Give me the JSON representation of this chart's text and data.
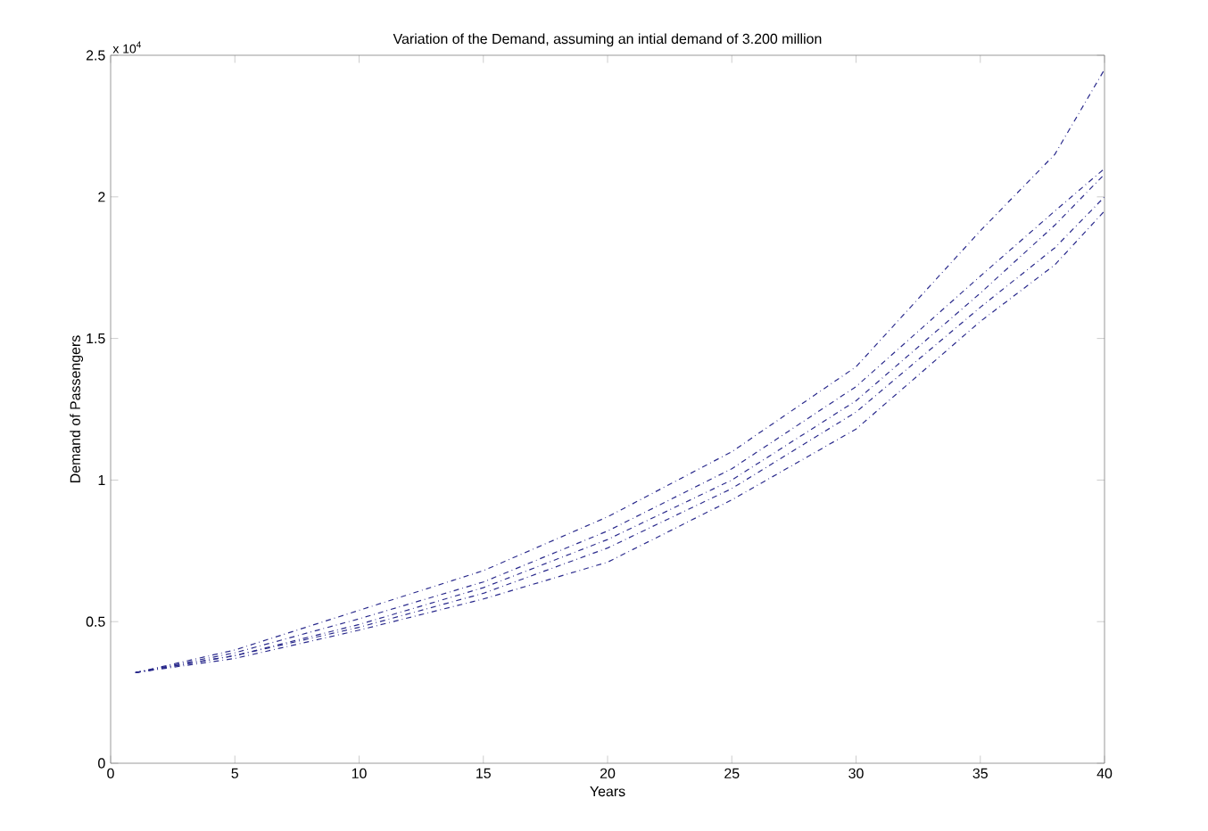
{
  "chart_data": {
    "type": "line",
    "title": "Variation of the Demand, assuming an intial demand of 3.200 million",
    "xlabel": "Years",
    "ylabel": "Demand of Passengers",
    "annotations": [
      "x 10$^{4}$"
    ],
    "x": [
      1,
      5,
      10,
      15,
      20,
      25,
      30,
      35,
      38,
      40
    ],
    "series": [
      {
        "color": "#2a2a8c",
        "values": [
          0.32,
          0.4,
          0.54,
          0.68,
          0.87,
          1.1,
          1.4,
          1.88,
          2.15,
          2.45
        ]
      },
      {
        "color": "#2a2a8c",
        "values": [
          0.32,
          0.39,
          0.51,
          0.64,
          0.82,
          1.04,
          1.33,
          1.72,
          1.95,
          2.1
        ]
      },
      {
        "color": "#2a2a8c",
        "values": [
          0.32,
          0.38,
          0.49,
          0.62,
          0.79,
          1.0,
          1.28,
          1.66,
          1.9,
          2.08
        ]
      },
      {
        "color": "#2a2a8c",
        "values": [
          0.32,
          0.38,
          0.48,
          0.6,
          0.76,
          0.97,
          1.24,
          1.61,
          1.82,
          2.0
        ]
      },
      {
        "color": "#2a2a8c",
        "values": [
          0.32,
          0.37,
          0.47,
          0.58,
          0.71,
          0.93,
          1.18,
          1.56,
          1.76,
          1.95
        ]
      }
    ],
    "xlim": [
      0,
      40
    ],
    "ylim": [
      0,
      2.5
    ],
    "xticks": [
      0,
      5,
      10,
      15,
      20,
      25,
      30,
      35,
      40
    ],
    "yticks": [
      0,
      0.5,
      1,
      1.5,
      2,
      2.5
    ],
    "grid": false,
    "marker": "none",
    "line_style": "dashed"
  }
}
